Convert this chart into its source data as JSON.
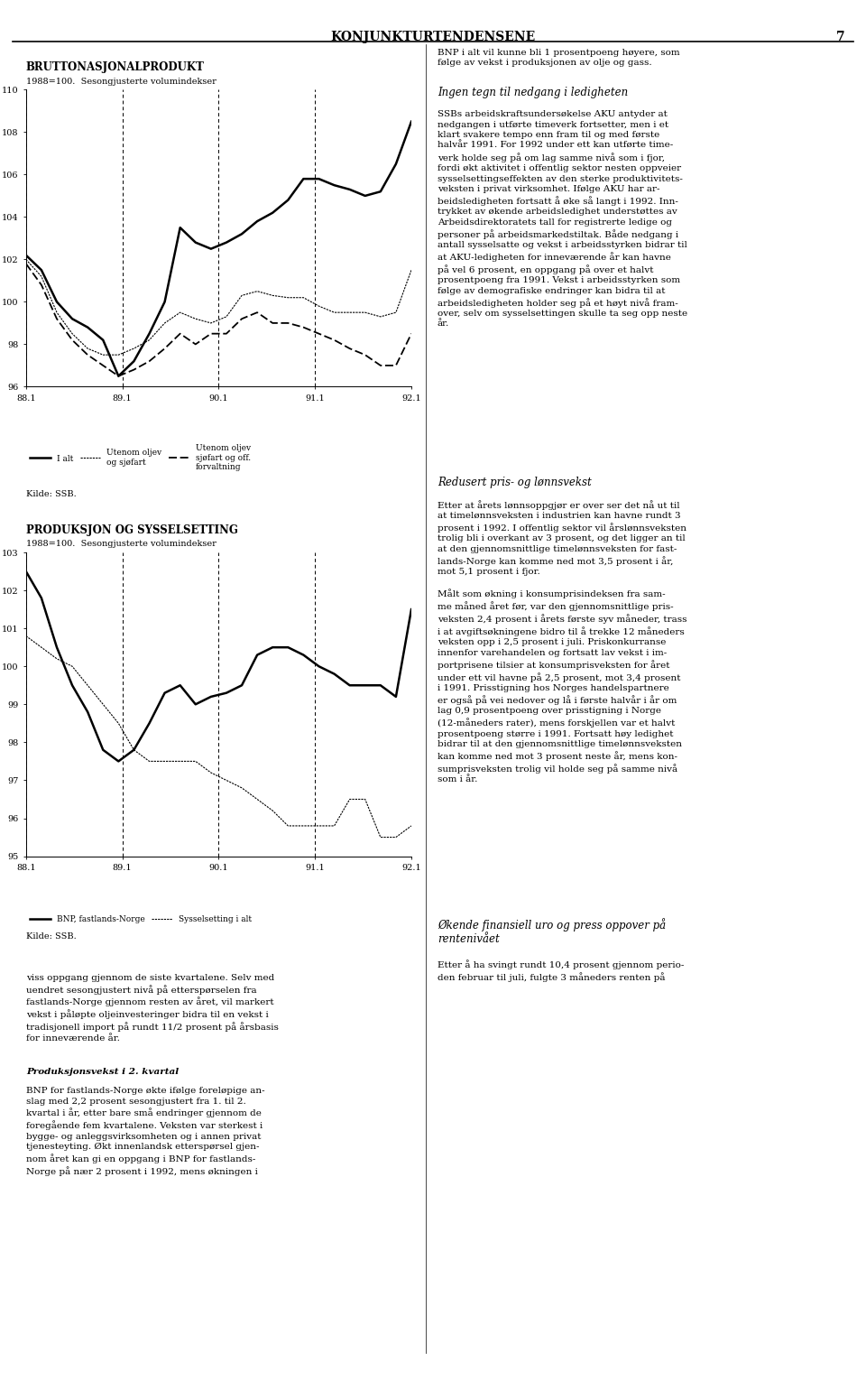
{
  "chart1": {
    "title": "BRUTTONASJONALPRODUKT",
    "subtitle": "1988=100.  Sesongjusterte volumindekser",
    "ylim": [
      96,
      110
    ],
    "yticks": [
      96,
      98,
      100,
      102,
      104,
      106,
      108,
      110
    ],
    "xtick_labels": [
      "88.1",
      "89.1",
      "90.1",
      "91.1",
      "92.1"
    ],
    "series": {
      "i_alt": [
        102.2,
        101.5,
        100.0,
        99.2,
        98.8,
        98.2,
        96.5,
        97.2,
        98.5,
        100.0,
        103.5,
        102.8,
        102.5,
        102.8,
        103.2,
        103.8,
        104.2,
        104.8,
        105.8,
        105.8,
        105.5,
        105.3,
        105.0,
        105.2,
        106.5,
        108.5
      ],
      "utenom_oljev_sjoefart": [
        102.0,
        101.2,
        99.5,
        98.5,
        97.8,
        97.5,
        97.5,
        97.8,
        98.2,
        99.0,
        99.5,
        99.2,
        99.0,
        99.3,
        100.3,
        100.5,
        100.3,
        100.2,
        100.2,
        99.8,
        99.5,
        99.5,
        99.5,
        99.3,
        99.5,
        101.5
      ],
      "utenom_oljev_sjoefart_off": [
        101.8,
        100.8,
        99.2,
        98.2,
        97.5,
        97.0,
        96.5,
        96.8,
        97.2,
        97.8,
        98.5,
        98.0,
        98.5,
        98.5,
        99.2,
        99.5,
        99.0,
        99.0,
        98.8,
        98.5,
        98.2,
        97.8,
        97.5,
        97.0,
        97.0,
        98.5
      ]
    }
  },
  "chart2": {
    "title": "PRODUKSJON OG SYSSELSETTING",
    "subtitle": "1988=100.  Sesongjusterte volumindekser",
    "ylim": [
      95,
      103
    ],
    "yticks": [
      95,
      96,
      97,
      98,
      99,
      100,
      101,
      102,
      103
    ],
    "xtick_labels": [
      "88.1",
      "89.1",
      "90.1",
      "91.1",
      "92.1"
    ],
    "series": {
      "bnp_fastlands": [
        102.5,
        101.8,
        100.5,
        99.5,
        98.8,
        97.8,
        97.5,
        97.8,
        98.5,
        99.3,
        99.5,
        99.0,
        99.2,
        99.3,
        99.5,
        100.3,
        100.5,
        100.5,
        100.3,
        100.0,
        99.8,
        99.5,
        99.5,
        99.5,
        99.2,
        101.5
      ],
      "sysselsetting": [
        100.8,
        100.5,
        100.2,
        100.0,
        99.5,
        99.0,
        98.5,
        97.8,
        97.5,
        97.5,
        97.5,
        97.5,
        97.2,
        97.0,
        96.8,
        96.5,
        96.2,
        95.8,
        95.8,
        95.8,
        95.8,
        96.5,
        96.5,
        95.5,
        95.5,
        95.8
      ]
    }
  },
  "source_text": "Kilde: SSB.",
  "header": "KONJUNKTURTENDENSENE",
  "header_page": "7",
  "background_color": "#ffffff",
  "left_col_bottom_text": "viss oppgang gjennom de siste kvartalene. Selv med\nuendret sesongjustert nivå på etterspørselen fra\nfastlands-Norge gjennom resten av året, vil markert\nvekst i påløpte oljeinvesteringer bidra til en vekst i\ntradisjonell import på rundt 11/2 prosent på årsbasis\nfor inneværende år.",
  "left_col_section2_title": "Produksjonsvekst i 2. kvartal",
  "left_col_section2_text": "BNP for fastlands-Norge økte ifølge foreløpige an-\nslag med 2,2 prosent sesongjustert fra 1. til 2.\nkvartal i år, etter bare små endringer gjennom de\nforegående fem kvartalene. Veksten var sterkest i\nbygge- og anleggsvirksomheten og i annen privat\ntjenesteyting. Økt innenlandsk etterspørsel gjen-\nnom året kan gi en oppgang i BNP for fastlands-\nNorge på nær 2 prosent i 1992, mens økningen i",
  "right_col_intro": "BNP i alt vil kunne bli 1 prosentpoeng høyere, som\nfølge av vekst i produksjonen av olje og gass.",
  "right_section1_title": "Ingen tegn til nedgang i ledigheten",
  "right_section1_text": "SSBs arbeidskraftsundersøkelse AKU antyder at\nnedgangen i utførte timeverk fortsetter, men i et\nklart svakere tempo enn fram til og med første\nhalvår 1991. For 1992 under ett kan utførte time-\nverk holde seg på om lag samme nivå som i fjor,\nfordi økt aktivitet i offentlig sektor nesten oppveier\nsysselsettingseffekten av den sterke produktivitets-\nveksten i privat virksomhet. Ifølge AKU har ar-\nbeidsledigheten fortsatt å øke så langt i 1992. Inn-\ntrykket av økende arbeidsledighet understøttes av\nArbeidsdirektoratets tall for registrerte ledige og\npersoner på arbeidsmarkedstiltak. Både nedgang i\nantall sysselsatte og vekst i arbeidsstyrken bidrar til\nat AKU-ledigheten for inneværende år kan havne\npå vel 6 prosent, en oppgang på over et halvt\nprosentpoeng fra 1991. Vekst i arbeidsstyrken som\nfølge av demografiske endringer kan bidra til at\narbeidsledigheten holder seg på et høyt nivå fram-\nover, selv om sysselsettingen skulle ta seg opp neste\når.",
  "right_section2_title": "Redusert pris- og lønnsvekst",
  "right_section2_text": "Etter at årets lønnsoppgjør er over ser det nå ut til\nat timelønnsveksten i industrien kan havne rundt 3\nprosent i 1992. I offentlig sektor vil årslønnsveksten\ntrolig bli i overkant av 3 prosent, og det ligger an til\nat den gjennomsnittlige timelønnsveksten for fast-\nlands-Norge kan komme ned mot 3,5 prosent i år,\nmot 5,1 prosent i fjor.\n\nMålt som økning i konsumprisindeksen fra sam-\nme måned året før, var den gjennomsnittlige pris-\nveksten 2,4 prosent i årets første syv måneder, trass\ni at avgiftsøkningene bidro til å trekke 12 måneders\nveksten opp i 2,5 prosent i juli. Priskonkurranse\ninnenfor varehandelen og fortsatt lav vekst i im-\nportprisene tilsier at konsumprisveksten for året\nunder ett vil havne på 2,5 prosent, mot 3,4 prosent\ni 1991. Prisstigning hos Norges handelspartnere\ner også på vei nedover og lå i første halvår i år om\nlag 0,9 prosentpoeng over prisstigning i Norge\n(12-måneders rater), mens forskjellen var et halvt\nprosentpoeng større i 1991. Fortsatt høy ledighet\nbidrar til at den gjennomsnittlige timelønnsveksten\nkan komme ned mot 3 prosent neste år, mens kon-\nsumprisveksten trolig vil holde seg på samme nivå\nsom i år.",
  "right_section3_title": "Økende finansiell uro og press oppover på\nrentenivået",
  "right_section3_text": "Etter å ha svingt rundt 10,4 prosent gjennom perio-\nden februar til juli, fulgte 3 måneders renten på"
}
